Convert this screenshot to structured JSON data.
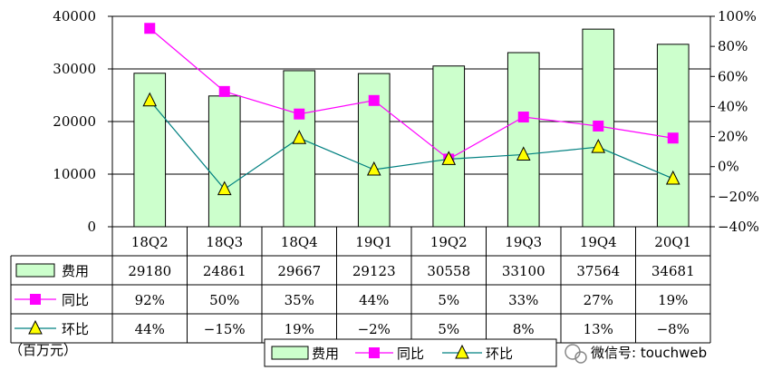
{
  "chart_data": {
    "type": "bar",
    "categories": [
      "18Q2",
      "18Q3",
      "18Q4",
      "19Q1",
      "19Q2",
      "19Q3",
      "19Q4",
      "20Q1"
    ],
    "series": [
      {
        "name": "费用",
        "type": "bar",
        "axis": "left",
        "color": "#ccffcc",
        "values": [
          29180,
          24861,
          29667,
          29123,
          30558,
          33100,
          37564,
          34681
        ]
      },
      {
        "name": "同比",
        "type": "line",
        "axis": "right",
        "color": "#ff00ff",
        "marker": "square",
        "values": [
          92,
          50,
          35,
          44,
          5,
          33,
          27,
          19
        ]
      },
      {
        "name": "环比",
        "type": "line",
        "axis": "right",
        "color": "#008080",
        "marker": "triangle",
        "marker_color": "#ffff00",
        "values": [
          44,
          -15,
          19,
          -2,
          5,
          8,
          13,
          -8
        ]
      }
    ],
    "table_rows": [
      [
        "29180",
        "24861",
        "29667",
        "29123",
        "30558",
        "33100",
        "37564",
        "34681"
      ],
      [
        "92%",
        "50%",
        "35%",
        "44%",
        "5%",
        "33%",
        "27%",
        "19%"
      ],
      [
        "44%",
        "−15%",
        "19%",
        "−2%",
        "5%",
        "8%",
        "13%",
        "−8%"
      ]
    ],
    "ylim_left": [
      0,
      40000
    ],
    "yticks_left": [
      "0",
      "10000",
      "20000",
      "30000",
      "40000"
    ],
    "ylim_right": [
      -40,
      100
    ],
    "yticks_right": [
      "−40%",
      "−20%",
      "0%",
      "20%",
      "40%",
      "60%",
      "80%",
      "100%"
    ],
    "grid": true,
    "unit_label": "（百万元）",
    "legend_position": "bottom"
  },
  "watermark": "微信号: touchweb"
}
